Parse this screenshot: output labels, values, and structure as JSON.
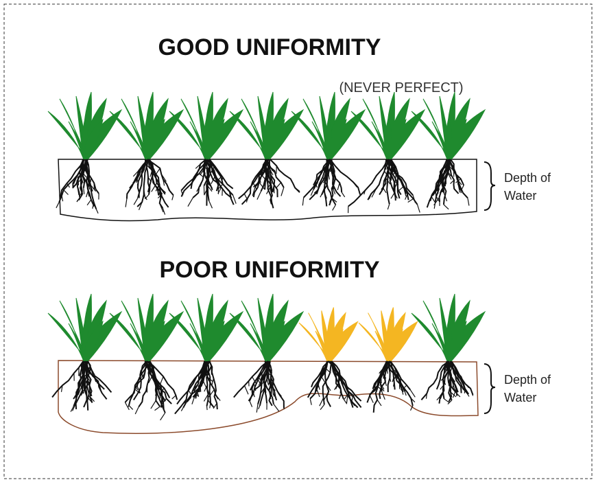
{
  "panels": [
    {
      "title": "GOOD UNIFORMITY",
      "note": "(NEVER PERFECT)",
      "depth_label": [
        "Depth of",
        "Water"
      ]
    },
    {
      "title": "POOR UNIFORMITY",
      "depth_label": [
        "Depth of",
        "Water"
      ]
    }
  ]
}
